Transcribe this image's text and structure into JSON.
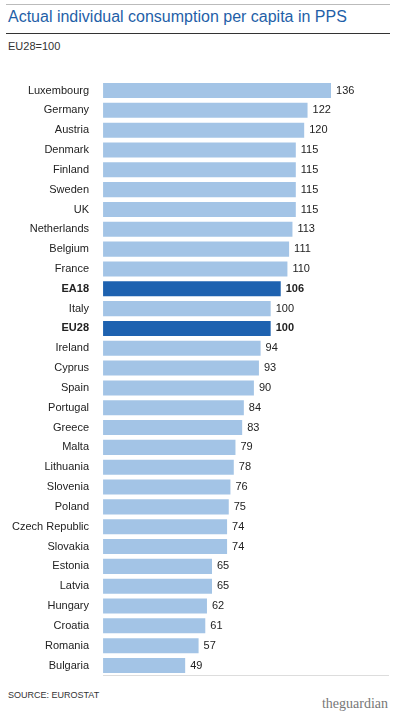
{
  "chart_data": {
    "type": "bar",
    "title": "Actual individual consumption per capita in PPS",
    "subtitle": "EU28=100",
    "source": "SOURCE: EUROSTAT",
    "credit": "theguardian",
    "orientation": "horizontal",
    "categories": [
      "Luxembourg",
      "Germany",
      "Austria",
      "Denmark",
      "Finland",
      "Sweden",
      "UK",
      "Netherlands",
      "Belgium",
      "France",
      "EA18",
      "Italy",
      "EU28",
      "Ireland",
      "Cyprus",
      "Spain",
      "Portugal",
      "Greece",
      "Malta",
      "Lithuania",
      "Slovenia",
      "Poland",
      "Czech Republic",
      "Slovakia",
      "Estonia",
      "Latvia",
      "Hungary",
      "Croatia",
      "Romania",
      "Bulgaria"
    ],
    "values": [
      136,
      122,
      120,
      115,
      115,
      115,
      115,
      113,
      111,
      110,
      106,
      100,
      100,
      94,
      93,
      90,
      84,
      83,
      79,
      78,
      76,
      75,
      74,
      74,
      65,
      65,
      62,
      61,
      57,
      49
    ],
    "colors": [
      "#a3c4e6",
      "#a3c4e6",
      "#a3c4e6",
      "#a3c4e6",
      "#a3c4e6",
      "#a3c4e6",
      "#a3c4e6",
      "#a3c4e6",
      "#a3c4e6",
      "#a3c4e6",
      "#1e62b0",
      "#a3c4e6",
      "#1e62b0",
      "#a3c4e6",
      "#a3c4e6",
      "#a3c4e6",
      "#a3c4e6",
      "#a3c4e6",
      "#a3c4e6",
      "#a3c4e6",
      "#a3c4e6",
      "#a3c4e6",
      "#a3c4e6",
      "#a3c4e6",
      "#a3c4e6",
      "#a3c4e6",
      "#a3c4e6",
      "#a3c4e6",
      "#a3c4e6",
      "#a3c4e6"
    ],
    "xlim": [
      0,
      170
    ],
    "grid": false,
    "data_labels": true,
    "tick_labels": "y"
  }
}
